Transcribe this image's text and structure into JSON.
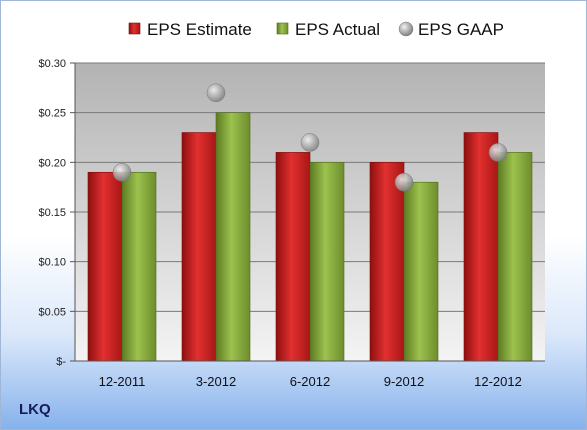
{
  "chart_data": {
    "type": "bar",
    "categories": [
      "12-2011",
      "3-2012",
      "6-2012",
      "9-2012",
      "12-2012"
    ],
    "series": [
      {
        "name": "EPS Estimate",
        "values": [
          0.19,
          0.23,
          0.21,
          0.2,
          0.23
        ],
        "color": "#cc1f1f"
      },
      {
        "name": "EPS Actual",
        "values": [
          0.19,
          0.25,
          0.2,
          0.18,
          0.21
        ],
        "color": "#8db040"
      },
      {
        "name": "EPS GAAP",
        "values": [
          0.19,
          0.27,
          0.22,
          0.18,
          0.21
        ],
        "color": "#a9a9a9",
        "kind": "scatter"
      }
    ],
    "ylim": [
      0,
      0.3
    ],
    "yticks": [
      0,
      0.05,
      0.1,
      0.15,
      0.2,
      0.25,
      0.3
    ],
    "ytick_labels": [
      "$-",
      "$0.05",
      "$0.10",
      "$0.15",
      "$0.20",
      "$0.25",
      "$0.30"
    ],
    "grid": true,
    "legend_position": "top"
  },
  "footer": {
    "ticker": "LKQ"
  }
}
